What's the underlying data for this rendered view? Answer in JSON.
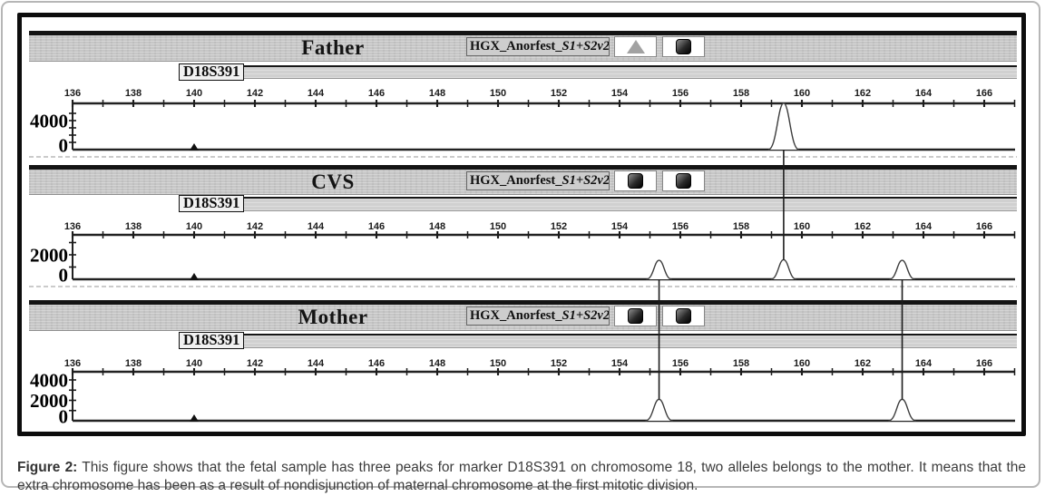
{
  "figure": {
    "caption_label": "Figure 2:",
    "caption_text": "This figure shows that the fetal sample has three peaks for marker D18S391 on chromosome 18, two alleles belongs to the mother. It means that the extra chromosome has been as a result of nondisjunction of maternal chromosome at the first mitotic division."
  },
  "panels": [
    {
      "title": "Father",
      "marker_label": "D18S391",
      "sample_prefix": "HGX_Anorfest_",
      "sample_suffix": "S1+S2v2",
      "icons": [
        "triangle-icon",
        "panel-square-icon"
      ]
    },
    {
      "title": "CVS",
      "marker_label": "D18S391",
      "sample_prefix": "HGX_Anorfest_",
      "sample_suffix": "S1+S2v2",
      "icons": [
        "panel-square-icon",
        "panel-square-icon"
      ]
    },
    {
      "title": "Mother",
      "marker_label": "D18S391",
      "sample_prefix": "HGX_Anorfest_",
      "sample_suffix": "S1+S2v2",
      "icons": [
        "panel-square-icon",
        "panel-square-icon"
      ]
    }
  ],
  "chart_data": [
    {
      "type": "line",
      "subtype": "electropherogram",
      "title": "Father",
      "marker": "D18S391",
      "x_axis": {
        "unit": "bp",
        "range": [
          135.3,
          167.1
        ],
        "ticks": [
          136,
          138,
          140,
          142,
          144,
          146,
          148,
          150,
          152,
          154,
          156,
          158,
          160,
          162,
          164,
          166
        ],
        "minor_tick_step": 1
      },
      "y_axis": {
        "labeled_ticks": [
          4000,
          0
        ],
        "tick_step": 1000
      },
      "size_standard_triangle_x": 140,
      "peaks": [
        {
          "x": 159.4,
          "height_rfu": 6400
        }
      ]
    },
    {
      "type": "line",
      "subtype": "electropherogram",
      "title": "CVS",
      "marker": "D18S391",
      "x_axis": {
        "unit": "bp",
        "range": [
          135.3,
          167.1
        ],
        "ticks": [
          136,
          138,
          140,
          142,
          144,
          146,
          148,
          150,
          152,
          154,
          156,
          158,
          160,
          162,
          164,
          166
        ],
        "minor_tick_step": 1
      },
      "y_axis": {
        "labeled_ticks": [
          2000,
          0
        ],
        "tick_step": 1000
      },
      "size_standard_triangle_x": 140,
      "peaks": [
        {
          "x": 155.3,
          "height_rfu": 1550
        },
        {
          "x": 159.4,
          "height_rfu": 1600
        },
        {
          "x": 163.3,
          "height_rfu": 1550
        }
      ]
    },
    {
      "type": "line",
      "subtype": "electropherogram",
      "title": "Mother",
      "marker": "D18S391",
      "x_axis": {
        "unit": "bp",
        "range": [
          135.3,
          167.1
        ],
        "ticks": [
          136,
          138,
          140,
          142,
          144,
          146,
          148,
          150,
          152,
          154,
          156,
          158,
          160,
          162,
          164,
          166
        ],
        "minor_tick_step": 1
      },
      "y_axis": {
        "labeled_ticks": [
          4000,
          2000,
          0
        ],
        "tick_step": 1000
      },
      "size_standard_triangle_x": 140,
      "peaks": [
        {
          "x": 155.3,
          "height_rfu": 2100
        },
        {
          "x": 163.3,
          "height_rfu": 2100
        }
      ]
    }
  ],
  "connectors": [
    {
      "x": 159.4,
      "from": "Father",
      "to": "CVS"
    },
    {
      "x": 155.3,
      "from": "CVS",
      "to": "Mother"
    },
    {
      "x": 163.3,
      "from": "CVS",
      "to": "Mother"
    }
  ],
  "colors": {
    "titlebar_gray": "#c6c6c6",
    "frame_border": "#0d0d0d",
    "outer_border": "#b6b6b6",
    "plot_stroke": "#2e2e2e",
    "caption_text": "#3c3c3c"
  }
}
